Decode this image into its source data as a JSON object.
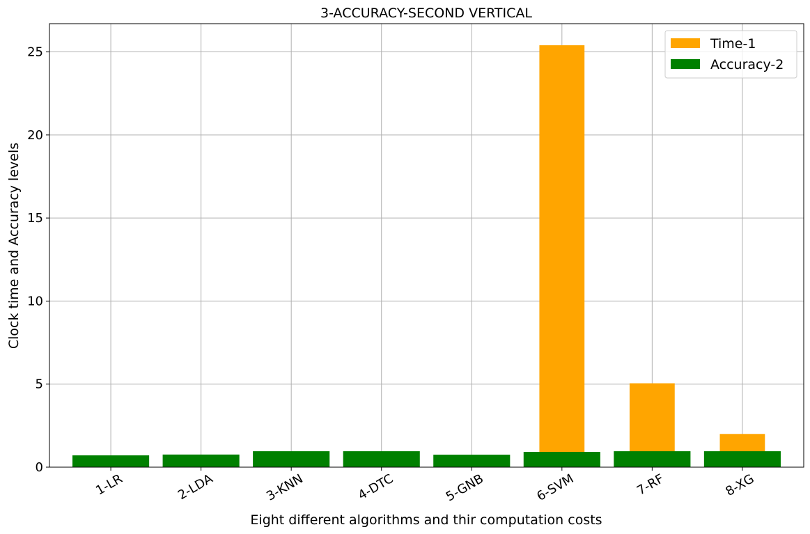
{
  "chart_data": {
    "type": "bar",
    "title": "3-ACCURACY-SECOND VERTICAL",
    "xlabel": "Eight different algorithms and thir computation costs",
    "ylabel": "Clock time and Accuracy levels",
    "categories": [
      "1-LR",
      "2-LDA",
      "3-KNN",
      "4-DTC",
      "5-GNB",
      "6-SVM",
      "7-RF",
      "8-XG"
    ],
    "ylim": [
      0,
      26.7
    ],
    "yticks": [
      0,
      5,
      10,
      15,
      20,
      25
    ],
    "grid": true,
    "legend_position": "top-right",
    "series": [
      {
        "name": "Time-1",
        "color": "#FFA500",
        "values": [
          0.05,
          0.05,
          0.1,
          0.05,
          0.05,
          25.4,
          5.05,
          2.0
        ]
      },
      {
        "name": "Accuracy-2",
        "color": "#008000",
        "values": [
          0.71,
          0.76,
          0.96,
          0.96,
          0.75,
          0.92,
          0.96,
          0.96
        ]
      }
    ]
  }
}
